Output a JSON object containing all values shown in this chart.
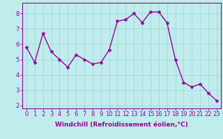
{
  "hours": [
    0,
    1,
    2,
    3,
    4,
    5,
    6,
    7,
    8,
    9,
    10,
    11,
    12,
    13,
    14,
    15,
    16,
    17,
    18,
    19,
    20,
    21,
    22,
    23
  ],
  "values": [
    5.8,
    4.8,
    6.7,
    5.5,
    5.0,
    4.5,
    5.3,
    5.0,
    4.7,
    4.8,
    5.6,
    7.5,
    7.6,
    8.0,
    7.4,
    8.1,
    8.1,
    7.4,
    5.0,
    3.5,
    3.2,
    3.4,
    2.8,
    2.3
  ],
  "line_color": "#990099",
  "marker": "*",
  "marker_size": 3,
  "bg_color": "#c0ecec",
  "grid_color": "#a0d8d8",
  "ylabel_ticks": [
    2,
    3,
    4,
    5,
    6,
    7,
    8
  ],
  "ylim": [
    1.8,
    8.7
  ],
  "xlim": [
    -0.5,
    23.5
  ],
  "xlabel": "Windchill (Refroidissement éolien,°C)",
  "xlabel_fontsize": 6.5,
  "tick_fontsize": 6.0,
  "line_width": 1.0
}
